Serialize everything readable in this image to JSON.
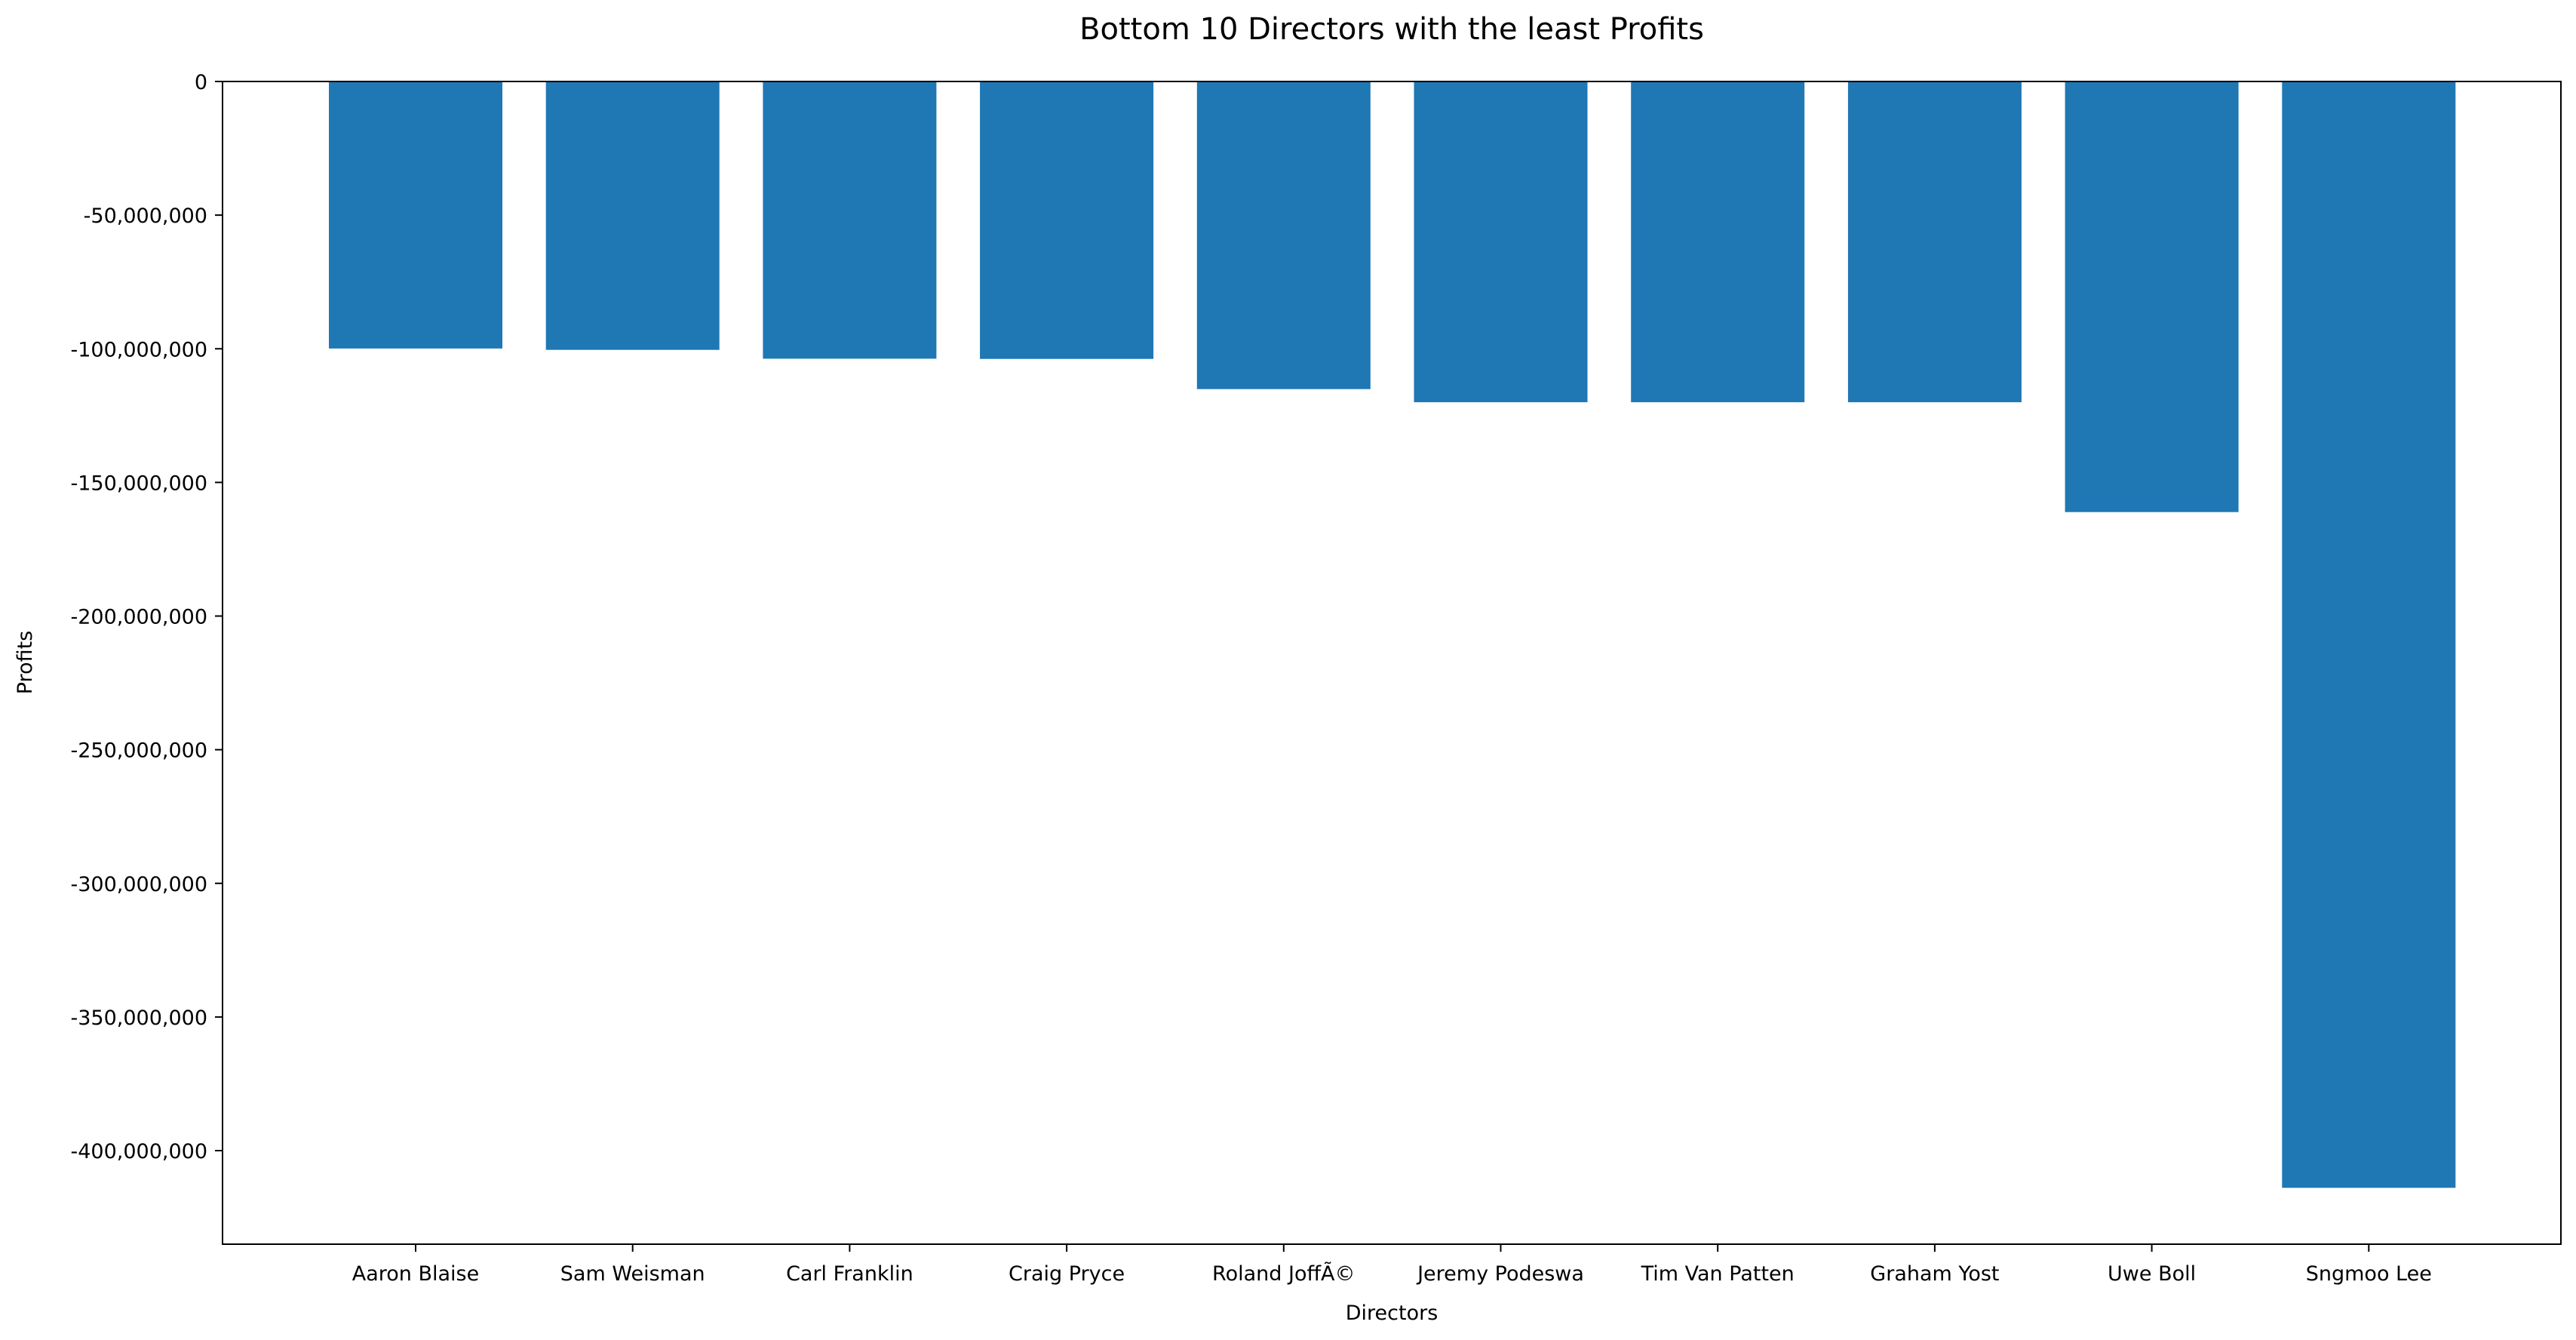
{
  "chart_data": {
    "type": "bar",
    "title": "Bottom 10 Directors with the least Profits",
    "xlabel": "Directors",
    "ylabel": "Profits",
    "categories": [
      "Aaron Blaise",
      "Sam Weisman",
      "Carl Franklin",
      "Craig Pryce",
      "Roland JoffÃ©",
      "Jeremy Podeswa",
      "Tim Van Patten",
      "Graham Yost",
      "Uwe Boll",
      "Sngmoo Lee"
    ],
    "values": [
      -99900000,
      -100400000,
      -103700000,
      -103800000,
      -115100000,
      -120000000,
      -120000000,
      -120000000,
      -161100000,
      -413900000
    ],
    "ylim": [
      -435000000,
      0
    ],
    "yticks": [
      0,
      -50000000,
      -100000000,
      -150000000,
      -200000000,
      -250000000,
      -300000000,
      -350000000,
      -400000000
    ],
    "ytick_labels": [
      "0",
      "-50,000,000",
      "-100,000,000",
      "-150,000,000",
      "-200,000,000",
      "-250,000,000",
      "-300,000,000",
      "-350,000,000",
      "-400,000,000"
    ],
    "bar_color": "#1f77b4",
    "grid": false,
    "legend": "none"
  }
}
